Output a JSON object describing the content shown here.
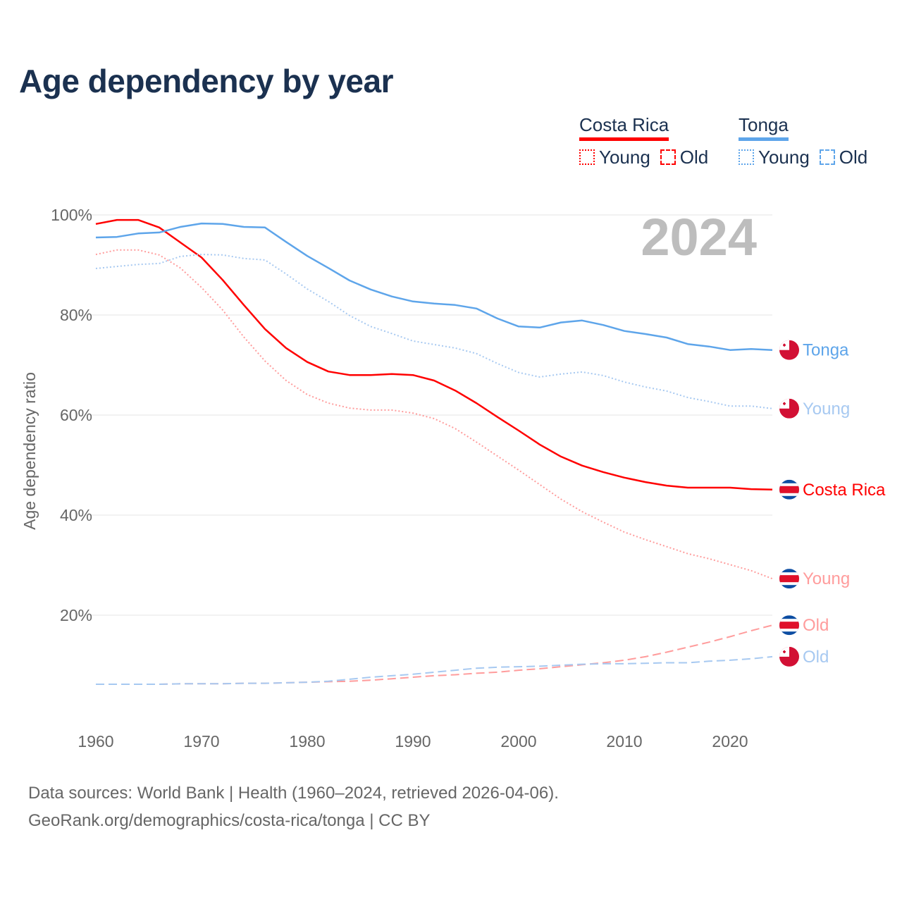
{
  "title": "Age dependency by year",
  "legend": [
    {
      "name": "Costa Rica",
      "color": "#ff0000",
      "young_label": "Young",
      "old_label": "Old"
    },
    {
      "name": "Tonga",
      "color": "#5ea5ea",
      "young_label": "Young",
      "old_label": "Old"
    }
  ],
  "source": {
    "line1": "Data sources: World Bank | Health (1960–2024, retrieved 2026-04-06).",
    "line2": "GeoRank.org/demographics/costa-rica/tonga | CC BY"
  },
  "chart_data": {
    "type": "line",
    "title": "Age dependency by year",
    "xlabel": "",
    "ylabel": "Age dependency ratio",
    "year_watermark": "2024",
    "xlim": [
      1960,
      2024
    ],
    "ylim": [
      0,
      100
    ],
    "x_ticks": [
      1960,
      1970,
      1980,
      1990,
      2000,
      2010,
      2020
    ],
    "y_ticks": [
      {
        "value": 20,
        "label": "20%"
      },
      {
        "value": 40,
        "label": "40%"
      },
      {
        "value": 60,
        "label": "60%"
      },
      {
        "value": 80,
        "label": "80%"
      },
      {
        "value": 100,
        "label": "100%"
      }
    ],
    "grid": true,
    "x": [
      1960,
      1962,
      1964,
      1966,
      1968,
      1970,
      1972,
      1974,
      1976,
      1978,
      1980,
      1982,
      1984,
      1986,
      1988,
      1990,
      1992,
      1994,
      1996,
      1998,
      2000,
      2002,
      2004,
      2006,
      2008,
      2010,
      2012,
      2014,
      2016,
      2018,
      2020,
      2022,
      2024
    ],
    "series": [
      {
        "name": "Costa Rica",
        "country": "Costa Rica",
        "kind": "total",
        "end_label": "Costa Rica",
        "color": "#ff0000",
        "dash": "solid",
        "values": [
          98.2,
          99.0,
          99.0,
          97.5,
          94.5,
          91.5,
          87.0,
          82.0,
          77.2,
          73.4,
          70.6,
          68.7,
          68.0,
          68.0,
          68.2,
          68.0,
          66.9,
          64.9,
          62.4,
          59.6,
          56.9,
          54.1,
          51.7,
          49.9,
          48.6,
          47.5,
          46.6,
          45.9,
          45.5,
          45.5,
          45.5,
          45.2,
          45.1
        ]
      },
      {
        "name": "Costa Rica Young",
        "country": "Costa Rica",
        "kind": "young",
        "end_label": "Young",
        "color": "#ff9c9c",
        "dash": "dotted",
        "values": [
          92.1,
          93.0,
          93.0,
          92.0,
          89.4,
          85.5,
          81.0,
          75.6,
          70.8,
          66.9,
          64.1,
          62.4,
          61.4,
          61.0,
          61.0,
          60.4,
          59.3,
          57.3,
          54.6,
          51.8,
          49.0,
          46.1,
          43.2,
          40.7,
          38.6,
          36.6,
          35.1,
          33.7,
          32.3,
          31.3,
          30.1,
          28.9,
          27.3
        ]
      },
      {
        "name": "Costa Rica Old",
        "country": "Costa Rica",
        "kind": "old",
        "end_label": "Old",
        "color": "#ff9c9c",
        "dash": "dashed",
        "values": [
          6.2,
          6.2,
          6.2,
          6.2,
          6.3,
          6.3,
          6.3,
          6.4,
          6.4,
          6.5,
          6.6,
          6.7,
          6.8,
          7.0,
          7.3,
          7.6,
          7.9,
          8.1,
          8.4,
          8.6,
          9.0,
          9.3,
          9.7,
          10.1,
          10.5,
          11.0,
          11.7,
          12.6,
          13.6,
          14.6,
          15.7,
          16.9,
          18.0
        ]
      },
      {
        "name": "Tonga",
        "country": "Tonga",
        "kind": "total",
        "end_label": "Tonga",
        "color": "#5ea5ea",
        "dash": "solid",
        "values": [
          95.5,
          95.6,
          96.3,
          96.5,
          97.6,
          98.3,
          98.2,
          97.6,
          97.5,
          94.6,
          91.8,
          89.4,
          86.9,
          85.1,
          83.7,
          82.7,
          82.3,
          82.0,
          81.3,
          79.3,
          77.7,
          77.5,
          78.5,
          78.9,
          78.0,
          76.8,
          76.2,
          75.5,
          74.2,
          73.7,
          73.0,
          73.2,
          73.0
        ]
      },
      {
        "name": "Tonga Young",
        "country": "Tonga",
        "kind": "young",
        "end_label": "Young",
        "color": "#a7c9f1",
        "dash": "dotted",
        "values": [
          89.3,
          89.7,
          90.1,
          90.3,
          91.7,
          92.1,
          92.0,
          91.3,
          91.0,
          88.2,
          85.2,
          82.7,
          79.9,
          77.7,
          76.3,
          74.8,
          74.1,
          73.4,
          72.3,
          70.3,
          68.5,
          67.6,
          68.2,
          68.6,
          67.9,
          66.6,
          65.6,
          64.8,
          63.5,
          62.7,
          61.8,
          61.8,
          61.3
        ]
      },
      {
        "name": "Tonga Old",
        "country": "Tonga",
        "kind": "old",
        "end_label": "Old",
        "color": "#a7c9f1",
        "dash": "dashed",
        "values": [
          6.2,
          6.2,
          6.2,
          6.2,
          6.3,
          6.3,
          6.3,
          6.4,
          6.4,
          6.5,
          6.6,
          6.8,
          7.2,
          7.6,
          7.9,
          8.2,
          8.6,
          9.0,
          9.4,
          9.6,
          9.7,
          9.8,
          10.0,
          10.2,
          10.3,
          10.3,
          10.4,
          10.5,
          10.5,
          10.8,
          11.0,
          11.3,
          11.7
        ]
      }
    ]
  }
}
